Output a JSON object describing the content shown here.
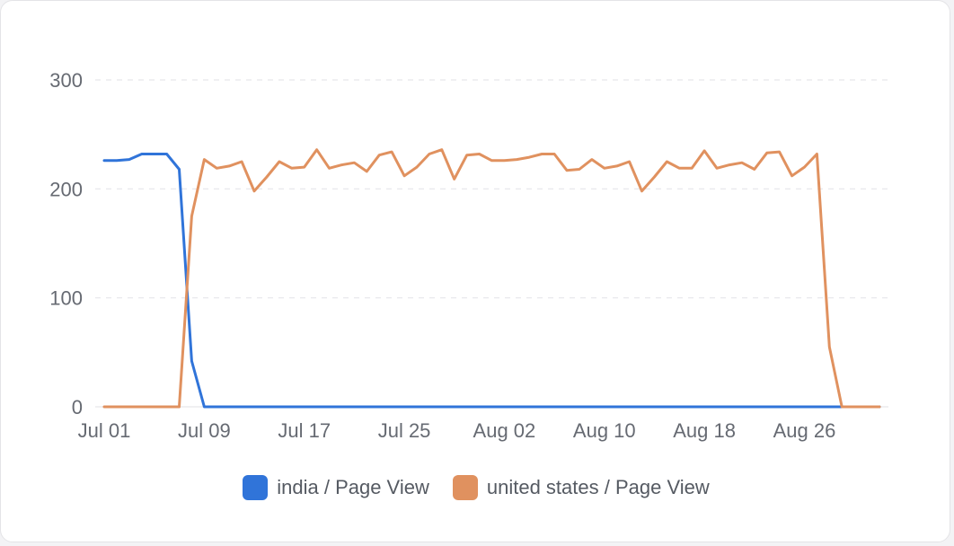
{
  "chart_data": {
    "type": "line",
    "x_labels_shown": [
      "Jul 01",
      "Jul 09",
      "Jul 17",
      "Jul 25",
      "Aug 02",
      "Aug 10",
      "Aug 18",
      "Aug 26"
    ],
    "x": [
      "Jul 01",
      "Jul 02",
      "Jul 03",
      "Jul 04",
      "Jul 05",
      "Jul 06",
      "Jul 07",
      "Jul 08",
      "Jul 09",
      "Jul 10",
      "Jul 11",
      "Jul 12",
      "Jul 13",
      "Jul 14",
      "Jul 15",
      "Jul 16",
      "Jul 17",
      "Jul 18",
      "Jul 19",
      "Jul 20",
      "Jul 21",
      "Jul 22",
      "Jul 23",
      "Jul 24",
      "Jul 25",
      "Jul 26",
      "Jul 27",
      "Jul 28",
      "Jul 29",
      "Jul 30",
      "Jul 31",
      "Aug 01",
      "Aug 02",
      "Aug 03",
      "Aug 04",
      "Aug 05",
      "Aug 06",
      "Aug 07",
      "Aug 08",
      "Aug 09",
      "Aug 10",
      "Aug 11",
      "Aug 12",
      "Aug 13",
      "Aug 14",
      "Aug 15",
      "Aug 16",
      "Aug 17",
      "Aug 18",
      "Aug 19",
      "Aug 20",
      "Aug 21",
      "Aug 22",
      "Aug 23",
      "Aug 24",
      "Aug 25",
      "Aug 26",
      "Aug 27",
      "Aug 28",
      "Aug 29",
      "Aug 30",
      "Aug 31",
      "Sep 01"
    ],
    "ylim": [
      0,
      300
    ],
    "y_ticks": [
      0,
      100,
      200,
      300
    ],
    "grid": true,
    "legend_position": "bottom",
    "series": [
      {
        "name": "india / Page View",
        "color": "#3074d9",
        "values": [
          226,
          226,
          227,
          232,
          232,
          232,
          218,
          42,
          0,
          0,
          0,
          0,
          0,
          0,
          0,
          0,
          0,
          0,
          0,
          0,
          0,
          0,
          0,
          0,
          0,
          0,
          0,
          0,
          0,
          0,
          0,
          0,
          0,
          0,
          0,
          0,
          0,
          0,
          0,
          0,
          0,
          0,
          0,
          0,
          0,
          0,
          0,
          0,
          0,
          0,
          0,
          0,
          0,
          0,
          0,
          0,
          0,
          0,
          0,
          0,
          0,
          0,
          0
        ]
      },
      {
        "name": "united states / Page View",
        "color": "#e0915f",
        "values": [
          0,
          0,
          0,
          0,
          0,
          0,
          0,
          175,
          227,
          219,
          221,
          225,
          198,
          211,
          225,
          219,
          220,
          236,
          219,
          222,
          224,
          216,
          231,
          234,
          212,
          220,
          232,
          236,
          209,
          231,
          232,
          226,
          226,
          227,
          229,
          232,
          232,
          217,
          218,
          227,
          219,
          221,
          225,
          198,
          211,
          225,
          219,
          219,
          235,
          219,
          222,
          224,
          218,
          233,
          234,
          212,
          220,
          232,
          55,
          0,
          0,
          0,
          0
        ]
      }
    ]
  }
}
